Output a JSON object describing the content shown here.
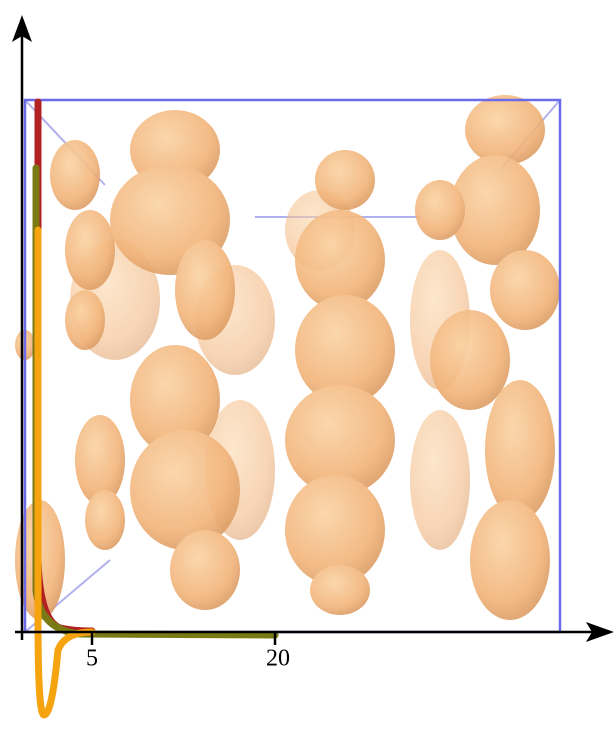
{
  "axis": {
    "xticks": [
      5,
      20
    ]
  }
}
